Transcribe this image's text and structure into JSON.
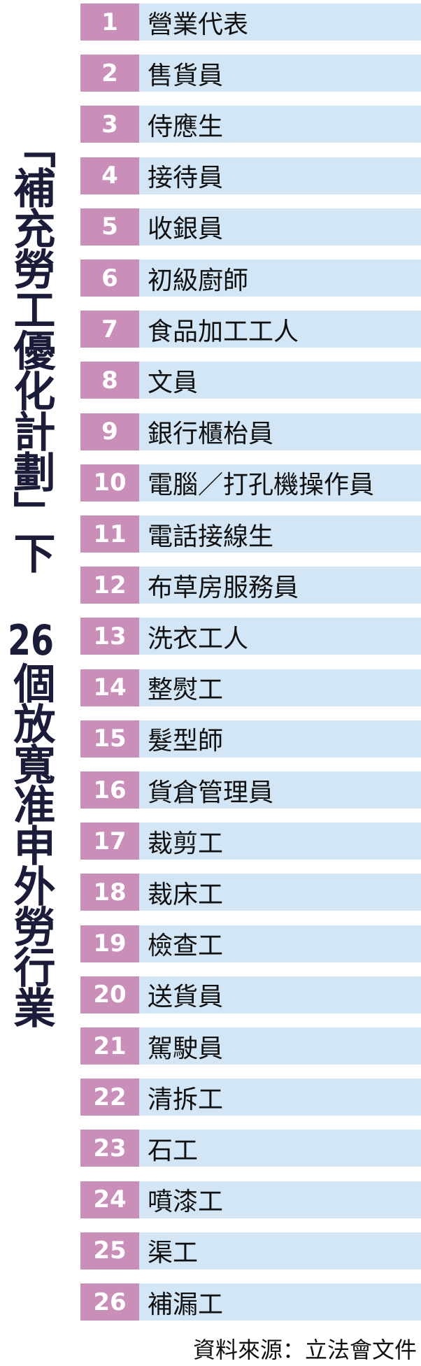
{
  "title": [
    "「補充勞工優化計劃」下",
    "26",
    "個放寬准申外勞行業"
  ],
  "rows": [
    {
      "number": 1,
      "label": "營業代表"
    },
    {
      "number": 2,
      "label": "售貨員"
    },
    {
      "number": 3,
      "label": "侍應生"
    },
    {
      "number": 4,
      "label": "接待員"
    },
    {
      "number": 5,
      "label": "收銀員"
    },
    {
      "number": 6,
      "label": "初級廚師"
    },
    {
      "number": 7,
      "label": "食品加工工人"
    },
    {
      "number": 8,
      "label": "文員"
    },
    {
      "number": 9,
      "label": "銀行櫃枱員"
    },
    {
      "number": 10,
      "label": "電腦／打孔機操作員"
    },
    {
      "number": 11,
      "label": "電話接線生"
    },
    {
      "number": 12,
      "label": "布草房服務員"
    },
    {
      "number": 13,
      "label": "洗衣工人"
    },
    {
      "number": 14,
      "label": "整熨工"
    },
    {
      "number": 15,
      "label": "髮型師"
    },
    {
      "number": 16,
      "label": "貨倉管理員"
    },
    {
      "number": 17,
      "label": "裁剪工"
    },
    {
      "number": 18,
      "label": "裁床工"
    },
    {
      "number": 19,
      "label": "檢查工"
    },
    {
      "number": 20,
      "label": "送貨員"
    },
    {
      "number": 21,
      "label": "駕駛員"
    },
    {
      "number": 22,
      "label": "清拆工"
    },
    {
      "number": 23,
      "label": "石工"
    },
    {
      "number": 24,
      "label": "噴漆工"
    },
    {
      "number": 25,
      "label": "渠工"
    },
    {
      "number": 26,
      "label": "補漏工"
    }
  ],
  "source": "資料來源：立法會文件"
}
